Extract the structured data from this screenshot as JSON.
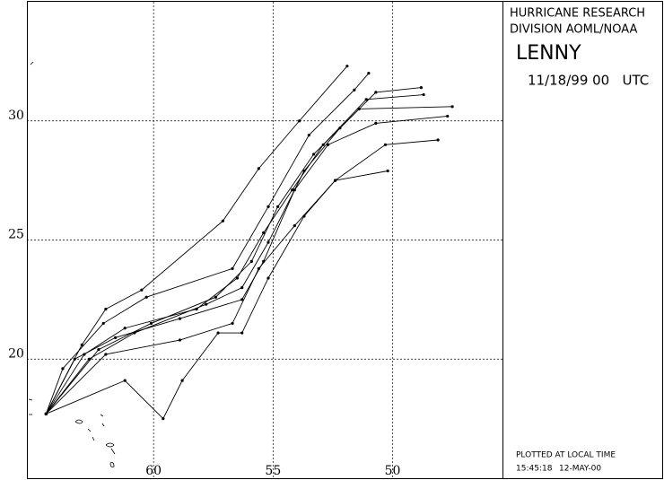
{
  "chart_data": {
    "type": "line",
    "annotations": [
      "HURRICANE RESEARCH",
      "DIVISION AOML/NOAA"
    ],
    "title": "LENNY",
    "subtitle": "11/18/99 00   UTC",
    "footer": [
      "PLOTTED AT LOCAL TIME",
      "15:45:18",
      "12-MAY-00"
    ],
    "xlim": [
      65.3,
      45.4
    ],
    "ylim": [
      15,
      35
    ],
    "xticks": [
      60,
      55,
      50
    ],
    "yticks": [
      20,
      25,
      30
    ],
    "grid": true,
    "series": [
      {
        "color": "#000000",
        "x": [
          64.5,
          63.0,
          62.0,
          60.5,
          57.1,
          55.6,
          53.9,
          51.9
        ],
        "values": [
          17.7,
          20.6,
          22.1,
          22.9,
          25.8,
          28.0,
          30.0,
          32.3
        ]
      },
      {
        "color": "#000000",
        "x": [
          64.5,
          61.2,
          59.6,
          58.8,
          57.3,
          56.3,
          55.2,
          53.7,
          52.4,
          50.3,
          48.1
        ],
        "values": [
          17.7,
          19.1,
          17.5,
          19.1,
          21.1,
          21.1,
          23.4,
          26.0,
          27.5,
          29.0,
          29.2
        ]
      },
      {
        "color": "#000000",
        "x": [
          64.5,
          62.7,
          60.8,
          57.8,
          56.3,
          55.2,
          53.7,
          52.2,
          50.7,
          48.8
        ],
        "values": [
          17.7,
          20.0,
          21.1,
          22.3,
          23.0,
          24.9,
          27.9,
          29.7,
          31.2,
          31.4
        ]
      },
      {
        "color": "#000000",
        "x": [
          64.5,
          62.3,
          60.1,
          57.4,
          55.9,
          54.8,
          53.3,
          51.4,
          47.5
        ],
        "values": [
          17.7,
          20.4,
          21.5,
          22.6,
          24.1,
          26.4,
          28.6,
          30.5,
          30.6
        ]
      },
      {
        "color": "#000000",
        "x": [
          64.5,
          62.0,
          58.9,
          56.7,
          55.6,
          54.1,
          52.4,
          50.2
        ],
        "values": [
          17.7,
          20.2,
          20.8,
          21.5,
          23.8,
          25.6,
          27.5,
          27.9
        ]
      },
      {
        "color": "#000000",
        "x": [
          64.5,
          63.8,
          62.1,
          60.3,
          56.7,
          55.2,
          53.5,
          51.6,
          51.0
        ],
        "values": [
          17.7,
          19.6,
          21.5,
          22.6,
          23.8,
          26.4,
          29.4,
          31.3,
          32.0
        ]
      },
      {
        "color": "#000000",
        "x": [
          64.5,
          62.9,
          61.2,
          58.2,
          56.5,
          55.4,
          54.2,
          52.9,
          51.1,
          48.7
        ],
        "values": [
          17.7,
          20.2,
          21.3,
          22.1,
          23.4,
          25.3,
          27.1,
          29.0,
          30.9,
          31.1
        ]
      },
      {
        "color": "#000000",
        "x": [
          64.5,
          63.3,
          61.6,
          58.9,
          56.3,
          55.4,
          54.1,
          52.7,
          50.7,
          47.7
        ],
        "values": [
          17.7,
          20.0,
          20.9,
          21.7,
          22.5,
          24.1,
          27.1,
          29.0,
          29.9,
          30.2
        ]
      }
    ]
  }
}
